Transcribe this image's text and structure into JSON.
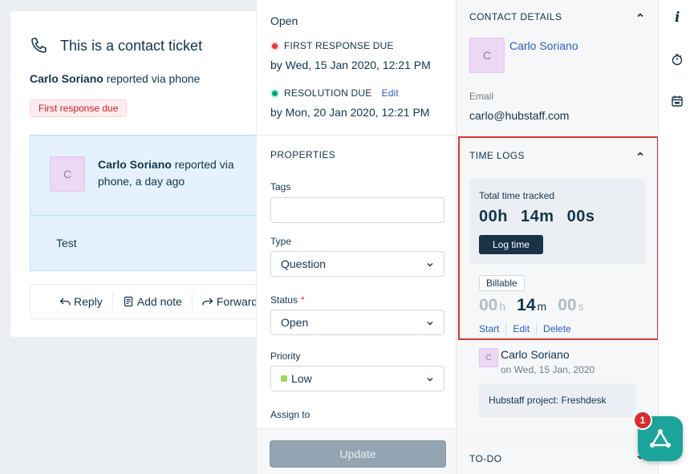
{
  "ticket": {
    "title": "This is a contact ticket",
    "requester": "Carlo Soriano",
    "reported_via": "reported via phone",
    "badge": "First response due",
    "conversation": {
      "avatar_initial": "C",
      "author": "Carlo Soriano",
      "meta": "reported via phone, a day ago",
      "body": "Test"
    },
    "actions": [
      {
        "label": "Reply"
      },
      {
        "label": "Add note"
      },
      {
        "label": "Forward"
      }
    ]
  },
  "properties_panel": {
    "status_top": "Open",
    "first_response": {
      "label": "FIRST RESPONSE DUE",
      "date": "by Wed, 15 Jan 2020, 12:21 PM"
    },
    "resolution": {
      "label": "RESOLUTION DUE",
      "edit": "Edit",
      "date": "by Mon, 20 Jan 2020, 12:21 PM"
    },
    "heading": "PROPERTIES",
    "tags_label": "Tags",
    "type_label": "Type",
    "type_value": "Question",
    "status_label": "Status",
    "required_mark": "*",
    "status_value": "Open",
    "priority_label": "Priority",
    "priority_value": "Low",
    "assign_label": "Assign to",
    "update_button": "Update"
  },
  "sidebar": {
    "contact_heading": "CONTACT DETAILS",
    "contact_avatar": "C",
    "contact_name": "Carlo Soriano",
    "email_label": "Email",
    "email_value": "carlo@hubstaff.com",
    "time_logs_heading": "TIME LOGS",
    "total_label": "Total time tracked",
    "total_value": "00h 14m 00s",
    "log_time_button": "Log time",
    "billable": "Billable",
    "timer": {
      "h": "00",
      "h_unit": "h",
      "m": "14",
      "m_unit": "m",
      "s": "00",
      "s_unit": "s"
    },
    "timer_links": [
      "Start",
      "Edit",
      "Delete"
    ],
    "entry": {
      "avatar": "C",
      "name": "Carlo Soriano",
      "date": "on Wed, 15 Jan, 2020",
      "project": "Hubstaff project: Freshdesk"
    },
    "todo_heading": "TO-DO"
  },
  "rail": {
    "info_glyph": "i",
    "icons": [
      "info-icon",
      "timer-icon",
      "calendar-icon"
    ]
  },
  "widget": {
    "badge_count": "1",
    "icon": "app-network-icon"
  },
  "colors": {
    "link": "#2c5cc5",
    "highlight_border": "#d03838",
    "due_red": "#e43538",
    "due_green": "#00a886",
    "widget": "#1ba49b"
  }
}
